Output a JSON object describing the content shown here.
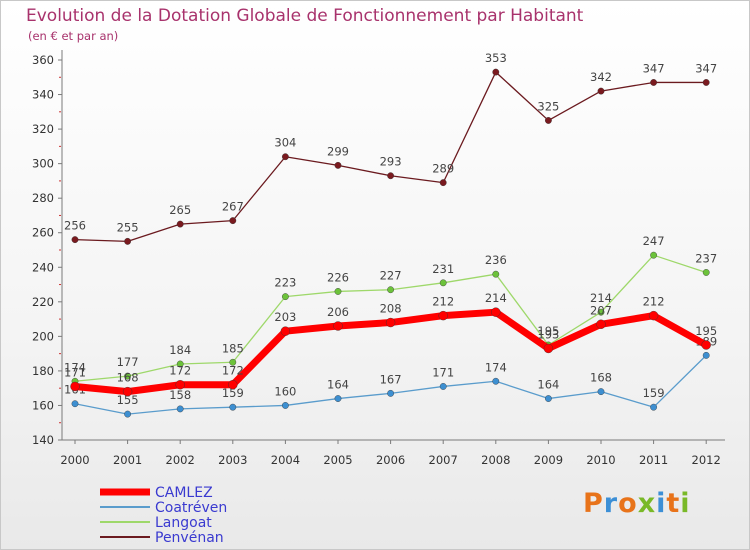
{
  "header": {
    "title": "Evolution de la Dotation Globale de Fonctionnement par Habitant",
    "subtitle": "(en € et par an)"
  },
  "brand": {
    "text": "Proxiti",
    "colors": [
      "#e8731a",
      "#3c8fd6",
      "#e8731a",
      "#79b928",
      "#3c8fd6",
      "#e8731a",
      "#79b928"
    ]
  },
  "chart_data": {
    "type": "line",
    "title": "Evolution de la Dotation Globale de Fonctionnement par Habitant",
    "subtitle": "(en € et par an)",
    "x": [
      "2000",
      "2001",
      "2002",
      "2003",
      "2004",
      "2005",
      "2006",
      "2007",
      "2008",
      "2009",
      "2010",
      "2011",
      "2012"
    ],
    "ylim": [
      140,
      360
    ],
    "yticks": [
      140,
      160,
      180,
      200,
      220,
      240,
      260,
      280,
      300,
      320,
      340,
      360
    ],
    "grid": false,
    "legend_position": "bottom-left",
    "series": [
      {
        "name": "Penvénan",
        "color": "#6b1a1f",
        "dot": "#7a1a1f",
        "width": 1.3,
        "values": [
          256,
          255,
          265,
          267,
          304,
          299,
          293,
          289,
          353,
          325,
          342,
          347,
          347
        ]
      },
      {
        "name": "Langoat",
        "color": "#9ed86a",
        "dot": "#6cc23a",
        "width": 1.3,
        "values": [
          174,
          177,
          184,
          185,
          223,
          226,
          227,
          231,
          236,
          195,
          214,
          247,
          237
        ]
      },
      {
        "name": "Coatréven",
        "color": "#5a9ccc",
        "dot": "#3d8fd1",
        "width": 1.3,
        "values": [
          161,
          155,
          158,
          159,
          160,
          164,
          167,
          171,
          174,
          164,
          168,
          159,
          189
        ]
      },
      {
        "name": "CAMLEZ",
        "color": "#ff0000",
        "dot": "#ff0000",
        "width": 7,
        "values": [
          171,
          168,
          172,
          172,
          203,
          206,
          208,
          212,
          214,
          193,
          207,
          212,
          195
        ]
      }
    ]
  }
}
